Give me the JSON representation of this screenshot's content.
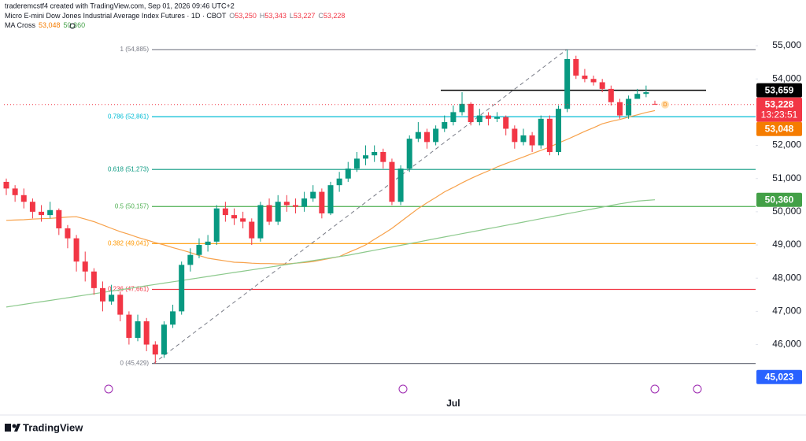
{
  "header": {
    "credit": "traderemcstf4 created with TradingView.com, Sep 01, 2026 09:46 UTC+2",
    "symbol": "Micro E-mini Dow Jones Industrial Average Index Futures · 1D · CBOT",
    "ohlc": [
      {
        "key": "O",
        "value": "53,250"
      },
      {
        "key": "H",
        "value": "53,343"
      },
      {
        "key": "L",
        "value": "53,227"
      },
      {
        "key": "C",
        "value": "53,228"
      }
    ],
    "indicator": "MA Cross",
    "indicator_values": [
      "53,048",
      "50,360"
    ]
  },
  "logo": "TradingView",
  "chart_data": {
    "type": "candlestick",
    "up_color": "#089981",
    "down_color": "#f23645",
    "ylim": [
      44400,
      56140
    ],
    "yticks": [
      {
        "value": 46000,
        "label": "46,000"
      },
      {
        "value": 47000,
        "label": "47,000"
      },
      {
        "value": 48000,
        "label": "48,000"
      },
      {
        "value": 49000,
        "label": "49,000"
      },
      {
        "value": 50000,
        "label": "50,000"
      },
      {
        "value": 51000,
        "label": "51,000"
      },
      {
        "value": 52000,
        "label": "52,000"
      },
      {
        "value": 54000,
        "label": "54,000"
      },
      {
        "value": 55000,
        "label": "55,000"
      }
    ],
    "grid": false,
    "categories": [
      null,
      null,
      null,
      null,
      null,
      null,
      null,
      null,
      null,
      null,
      null,
      null,
      null,
      null,
      null,
      null,
      null,
      null,
      null,
      null,
      null,
      null,
      null,
      null,
      null,
      null,
      null,
      null,
      null,
      null,
      null,
      null,
      null,
      null,
      null,
      null,
      null,
      null,
      null,
      null,
      null,
      null,
      null,
      null,
      null,
      null,
      null,
      null,
      null,
      null,
      null,
      "Jul",
      null,
      null,
      null,
      null,
      null,
      null,
      null,
      null,
      null,
      null,
      null,
      null,
      null,
      null,
      null,
      null,
      null,
      null,
      null,
      null,
      null,
      null,
      null
    ],
    "open": [
      50900,
      50700,
      50500,
      50300,
      50000,
      49900,
      50050,
      49500,
      49200,
      48500,
      48200,
      47700,
      47300,
      47500,
      46900,
      46200,
      46700,
      46000,
      45700,
      46600,
      47000,
      48400,
      48700,
      49000,
      49100,
      50100,
      49900,
      49800,
      49700,
      49200,
      50200,
      49700,
      50300,
      50200,
      50150,
      50400,
      50600,
      49950,
      50800,
      51000,
      51300,
      51600,
      51700,
      51800,
      51500,
      50300,
      51300,
      52200,
      52400,
      52100,
      52500,
      52700,
      53000,
      53250,
      52700,
      52900,
      52800,
      52850,
      52500,
      52100,
      52300,
      52000,
      52800,
      51800,
      53100,
      54600,
      54100,
      54000,
      53900,
      53700,
      53300,
      52900,
      53400,
      53550,
      53250
    ],
    "high": [
      51000,
      50800,
      50700,
      50400,
      50200,
      50300,
      50100,
      49600,
      49300,
      48800,
      48300,
      47900,
      47800,
      47600,
      47000,
      46900,
      46800,
      46100,
      46700,
      47200,
      48500,
      48900,
      49200,
      49300,
      50200,
      50300,
      50100,
      50000,
      49800,
      50300,
      50400,
      50500,
      50500,
      50400,
      50600,
      50800,
      50700,
      50900,
      51200,
      51500,
      51800,
      52000,
      52000,
      51900,
      51600,
      51400,
      52300,
      52700,
      52500,
      52600,
      52900,
      53200,
      53600,
      53300,
      53100,
      53000,
      53000,
      52900,
      52600,
      52500,
      52400,
      52900,
      52900,
      53200,
      54885,
      54700,
      54300,
      54100,
      54000,
      53800,
      53400,
      53500,
      53700,
      53800,
      53343
    ],
    "low": [
      50500,
      50300,
      50100,
      49800,
      49700,
      49800,
      49300,
      48900,
      48200,
      47900,
      47500,
      47000,
      47200,
      46700,
      46000,
      46100,
      45800,
      45429,
      45600,
      46500,
      46900,
      48200,
      48600,
      48800,
      49000,
      49700,
      49600,
      49500,
      49000,
      49100,
      49600,
      49600,
      50000,
      49950,
      50000,
      50300,
      49800,
      49900,
      50600,
      50900,
      51200,
      51400,
      51500,
      51300,
      50200,
      50200,
      51200,
      52100,
      51900,
      52000,
      52400,
      52600,
      52900,
      52600,
      52600,
      52600,
      52700,
      52300,
      51900,
      52000,
      51800,
      51900,
      51700,
      51700,
      53000,
      54000,
      53900,
      53800,
      53600,
      53200,
      52800,
      52800,
      53400,
      53450,
      53227
    ],
    "close": [
      50700,
      50500,
      50300,
      50000,
      49900,
      50050,
      49500,
      49200,
      48500,
      48200,
      47700,
      47300,
      47500,
      46900,
      46200,
      46700,
      46000,
      45700,
      46600,
      47000,
      48400,
      48700,
      49000,
      49100,
      50100,
      49900,
      49800,
      49700,
      49200,
      50200,
      49700,
      50300,
      50200,
      50150,
      50400,
      50600,
      49950,
      50800,
      51000,
      51300,
      51600,
      51700,
      51800,
      51500,
      50300,
      51300,
      52200,
      52400,
      52100,
      52500,
      52700,
      53000,
      53250,
      52700,
      52900,
      52800,
      52850,
      52500,
      52100,
      52300,
      52000,
      52800,
      51800,
      53100,
      54600,
      54100,
      54000,
      53900,
      53700,
      53300,
      52900,
      53400,
      53550,
      53600,
      53228
    ],
    "series": [
      {
        "color": "#f7a14a",
        "values": [
          49740,
          49750,
          49760,
          49780,
          49790,
          49800,
          49820,
          49840,
          49850,
          49780,
          49700,
          49600,
          49500,
          49400,
          49320,
          49230,
          49150,
          49070,
          49000,
          48920,
          48850,
          48770,
          48680,
          48600,
          48560,
          48520,
          48480,
          48470,
          48450,
          48440,
          48440,
          48430,
          48430,
          48450,
          48470,
          48500,
          48550,
          48600,
          48650,
          48770,
          48880,
          49000,
          49170,
          49330,
          49500,
          49700,
          49900,
          50100,
          50270,
          50430,
          50600,
          50730,
          50870,
          51000,
          51120,
          51230,
          51350,
          51450,
          51550,
          51650,
          51750,
          51850,
          51950,
          52070,
          52180,
          52300,
          52420,
          52530,
          52650,
          52720,
          52780,
          52850,
          52920,
          52990,
          53048
        ]
      },
      {
        "color": "#8cc98c",
        "values": [
          47130,
          47170,
          47210,
          47250,
          47290,
          47330,
          47370,
          47410,
          47450,
          47490,
          47530,
          47570,
          47610,
          47650,
          47690,
          47730,
          47770,
          47810,
          47850,
          47890,
          47930,
          47970,
          48010,
          48050,
          48090,
          48130,
          48170,
          48210,
          48250,
          48290,
          48330,
          48370,
          48410,
          48450,
          48490,
          48530,
          48570,
          48610,
          48650,
          48690,
          48740,
          48790,
          48840,
          48890,
          48940,
          48990,
          49040,
          49090,
          49140,
          49190,
          49240,
          49290,
          49340,
          49390,
          49440,
          49490,
          49540,
          49590,
          49640,
          49690,
          49740,
          49790,
          49840,
          49890,
          49940,
          49990,
          50040,
          50090,
          50140,
          50190,
          50240,
          50280,
          50320,
          50340,
          50360
        ]
      }
    ],
    "fib_levels": [
      {
        "value": 54885,
        "label": "1 (54,885)",
        "color": "#787b86"
      },
      {
        "value": 52861,
        "label": "0.786 (52,861)",
        "color": "#00bcd4"
      },
      {
        "value": 51273,
        "label": "0.618 (51,273)",
        "color": "#089981"
      },
      {
        "value": 50157,
        "label": "0.5 (50,157)",
        "color": "#4caf50"
      },
      {
        "value": 49041,
        "label": "0.382 (49,041)",
        "color": "#ff9800"
      },
      {
        "value": 47661,
        "label": "0.236 (47,661)",
        "color": "#f23645"
      },
      {
        "value": 45429,
        "label": "0 (45,429)",
        "color": "#787b86"
      }
    ],
    "horizontal_line": {
      "value": 53659,
      "color": "#000000"
    },
    "price_labels": [
      {
        "value": 53659,
        "label": "53,659",
        "color": "#000000"
      },
      {
        "value": 53228,
        "label": "53,228",
        "color": "#f23645",
        "countdown": "13:23:51"
      },
      {
        "value": 53048,
        "label": "53,048",
        "color": "#f57c00"
      },
      {
        "value": 50360,
        "label": "50,360",
        "color": "#43a047"
      },
      {
        "value": 45023,
        "label": "45,023",
        "color": "#2962ff"
      }
    ],
    "marker": "D"
  }
}
